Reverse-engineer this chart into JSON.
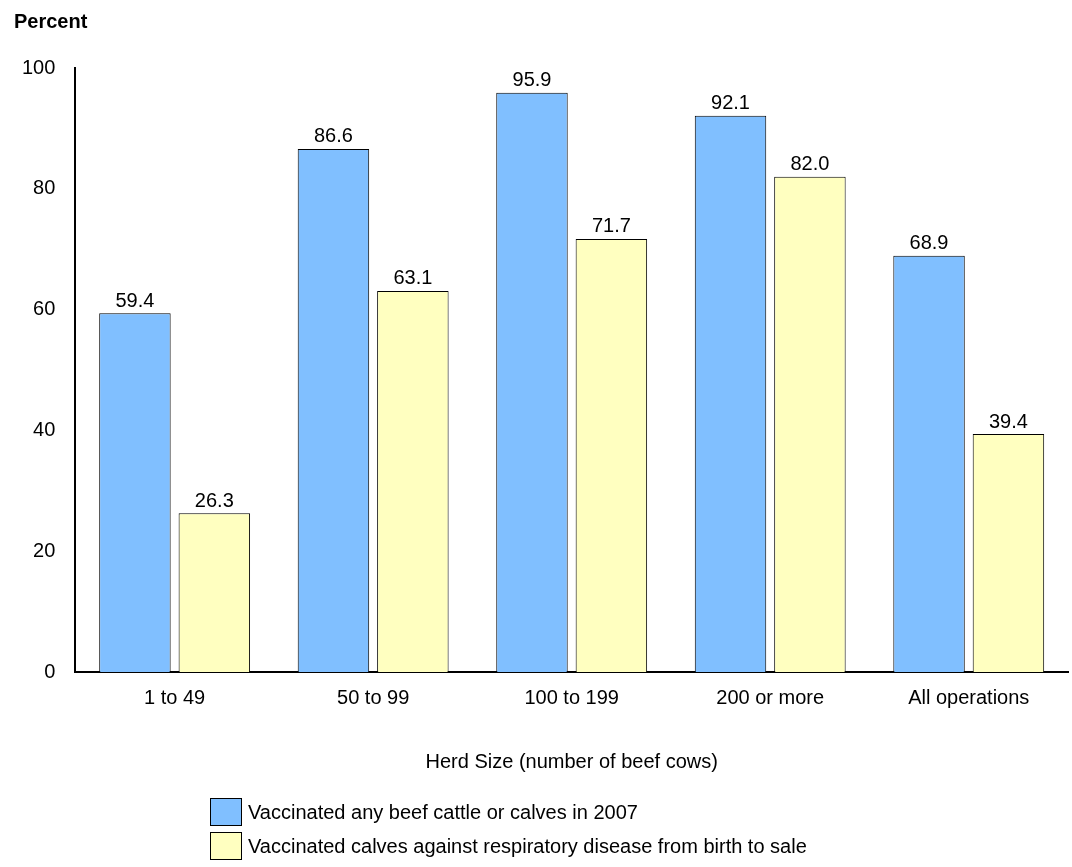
{
  "chart_data": {
    "type": "bar",
    "ylabel": "Percent",
    "xlabel": "Herd Size (number of beef cows)",
    "categories": [
      "1 to 49",
      "50 to 99",
      "100 to 199",
      "200 or more",
      "All operations"
    ],
    "series": [
      {
        "name": "Vaccinated any beef cattle or calves in 2007",
        "color": "#80bfff",
        "values": [
          59.4,
          86.6,
          95.9,
          92.1,
          68.9
        ],
        "value_labels": [
          "59.4",
          "86.6",
          "95.9",
          "92.1",
          "68.9"
        ]
      },
      {
        "name": "Vaccinated calves against respiratory disease from birth to sale",
        "color": "#ffffc0",
        "values": [
          26.3,
          63.1,
          71.7,
          82.0,
          39.4
        ],
        "value_labels": [
          "26.3",
          "63.1",
          "71.7",
          "82.0",
          "39.4"
        ]
      }
    ],
    "ylim": [
      0,
      100
    ],
    "yticks": [
      0,
      20,
      40,
      60,
      80,
      100
    ],
    "grid": false,
    "legend": "bottom"
  }
}
